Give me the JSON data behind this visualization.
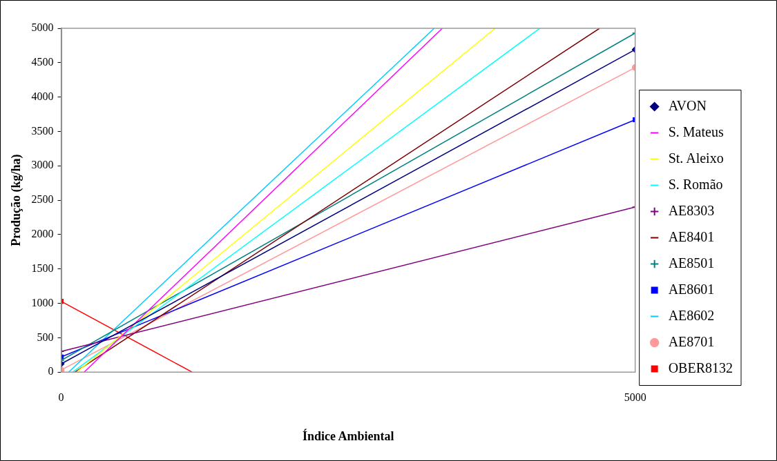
{
  "chart_data": {
    "type": "line",
    "xlabel": "Índice Ambiental",
    "ylabel": "Produção (kg/ha)",
    "xlim": [
      0,
      5000
    ],
    "xticks": [
      0,
      5000
    ],
    "ylim": [
      0,
      5000
    ],
    "yticks": [
      0,
      500,
      1000,
      1500,
      2000,
      2500,
      3000,
      3500,
      4000,
      4500,
      5000
    ],
    "grid": false,
    "legend": "right",
    "series": [
      {
        "name": "AVON",
        "color": "#000080",
        "marker": "diamond",
        "x": [
          0,
          5000
        ],
        "values": [
          120,
          4690
        ]
      },
      {
        "name": "S. Mateus",
        "color": "#ff00ff",
        "x": [
          200,
          3320
        ],
        "values": [
          0,
          5000
        ]
      },
      {
        "name": "St. Aleixo",
        "color": "#ffff00",
        "x": [
          135,
          3780
        ],
        "values": [
          0,
          5000
        ]
      },
      {
        "name": "S. Romão",
        "color": "#00ffff",
        "x": [
          100,
          4170
        ],
        "values": [
          0,
          5000
        ]
      },
      {
        "name": "AE8303",
        "color": "#800080",
        "marker": "cross",
        "x": [
          0,
          5000
        ],
        "values": [
          300,
          2400
        ]
      },
      {
        "name": "AE8401",
        "color": "#800000",
        "x": [
          120,
          4690
        ],
        "values": [
          0,
          5000
        ]
      },
      {
        "name": "AE8501",
        "color": "#008080",
        "marker": "cross",
        "x": [
          0,
          5000
        ],
        "values": [
          170,
          4930
        ]
      },
      {
        "name": "AE8601",
        "color": "#0000ff",
        "marker": "square",
        "x": [
          0,
          5000
        ],
        "values": [
          220,
          3670
        ]
      },
      {
        "name": "AE8602",
        "color": "#00ccff",
        "x": [
          65,
          3250
        ],
        "values": [
          0,
          5000
        ]
      },
      {
        "name": "AE8701",
        "color": "#ff9999",
        "marker": "circle",
        "x": [
          0,
          5000
        ],
        "values": [
          30,
          4430
        ]
      },
      {
        "name": "OBER8132",
        "color": "#ff0000",
        "marker": "square",
        "x": [
          0,
          1140
        ],
        "values": [
          1030,
          0
        ]
      }
    ]
  }
}
